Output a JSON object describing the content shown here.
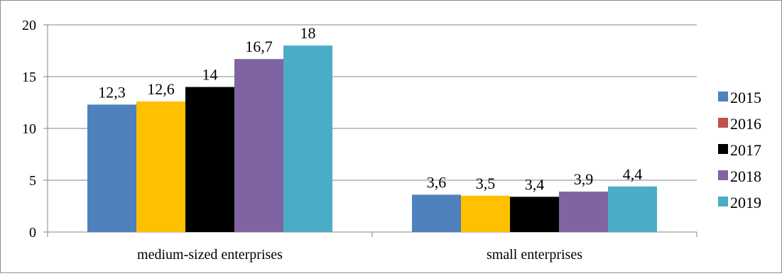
{
  "chart_data": {
    "type": "bar",
    "categories": [
      "medium-sized enterprises",
      "small enterprises"
    ],
    "series": [
      {
        "name": "2015",
        "values": [
          12.3,
          3.6
        ],
        "value_labels": [
          "12,3",
          "3,6"
        ],
        "color": "#4f81bd"
      },
      {
        "name": "2016",
        "values": [
          12.6,
          3.5
        ],
        "value_labels": [
          "12,6",
          "3,5"
        ],
        "color": "#ffc000",
        "legend_color": "#c0504d"
      },
      {
        "name": "2017",
        "values": [
          14,
          3.4
        ],
        "value_labels": [
          "14",
          "3,4"
        ],
        "color": "#000000"
      },
      {
        "name": "2018",
        "values": [
          16.7,
          3.9
        ],
        "value_labels": [
          "16,7",
          "3,9"
        ],
        "color": "#8064a2"
      },
      {
        "name": "2019",
        "values": [
          18,
          4.4
        ],
        "value_labels": [
          "18",
          "4,4"
        ],
        "color": "#4bacc6"
      }
    ],
    "title": "",
    "xlabel": "",
    "ylabel": "",
    "ylim": [
      0,
      20
    ],
    "yticks": [
      "0",
      "5",
      "10",
      "15",
      "20"
    ],
    "grid": true,
    "legend_position": "right"
  }
}
